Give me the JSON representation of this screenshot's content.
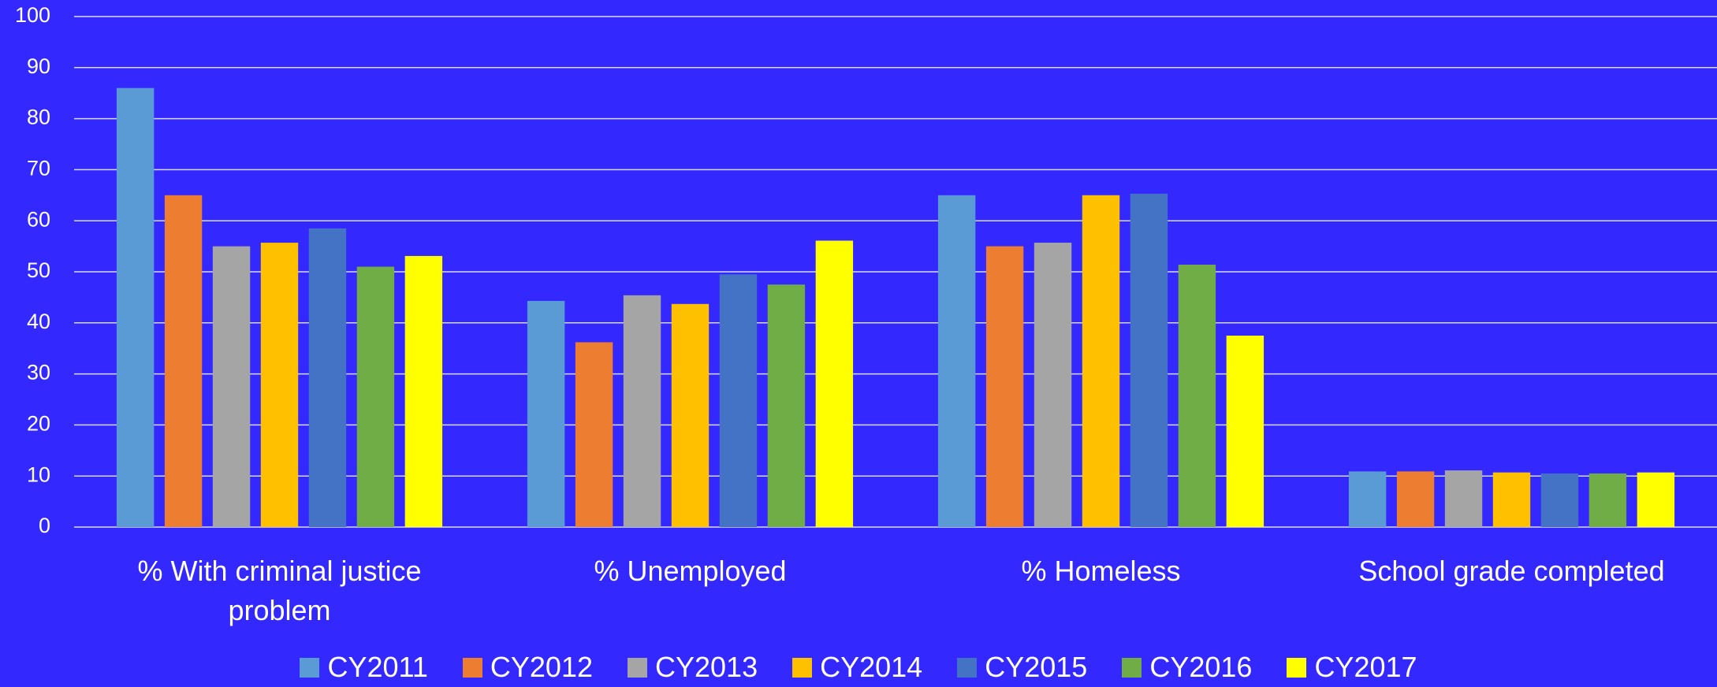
{
  "chart_data": {
    "type": "bar",
    "categories": [
      "% With criminal justice problem",
      "% Unemployed",
      "% Homeless",
      "School grade completed"
    ],
    "series": [
      {
        "name": "CY2011",
        "color": "#5b9bd5",
        "values": [
          86,
          44.3,
          65,
          10.9
        ]
      },
      {
        "name": "CY2012",
        "color": "#ed7d31",
        "values": [
          65,
          36.2,
          55,
          10.9
        ]
      },
      {
        "name": "CY2013",
        "color": "#a5a5a5",
        "values": [
          55,
          45.4,
          55.7,
          11.1
        ]
      },
      {
        "name": "CY2014",
        "color": "#ffc000",
        "values": [
          55.7,
          43.7,
          65,
          10.7
        ]
      },
      {
        "name": "CY2015",
        "color": "#4472c4",
        "values": [
          58.5,
          49.5,
          65.3,
          10.5
        ]
      },
      {
        "name": "CY2016",
        "color": "#70ad47",
        "values": [
          51,
          47.5,
          51.4,
          10.5
        ]
      },
      {
        "name": "CY2017",
        "color": "#ffff00",
        "values": [
          53.1,
          56.1,
          37.5,
          10.7
        ]
      }
    ],
    "ylim": [
      0,
      100
    ],
    "yticks": [
      0,
      10,
      20,
      30,
      40,
      50,
      60,
      70,
      80,
      90,
      100
    ],
    "grid": true,
    "legend": "bottom"
  }
}
